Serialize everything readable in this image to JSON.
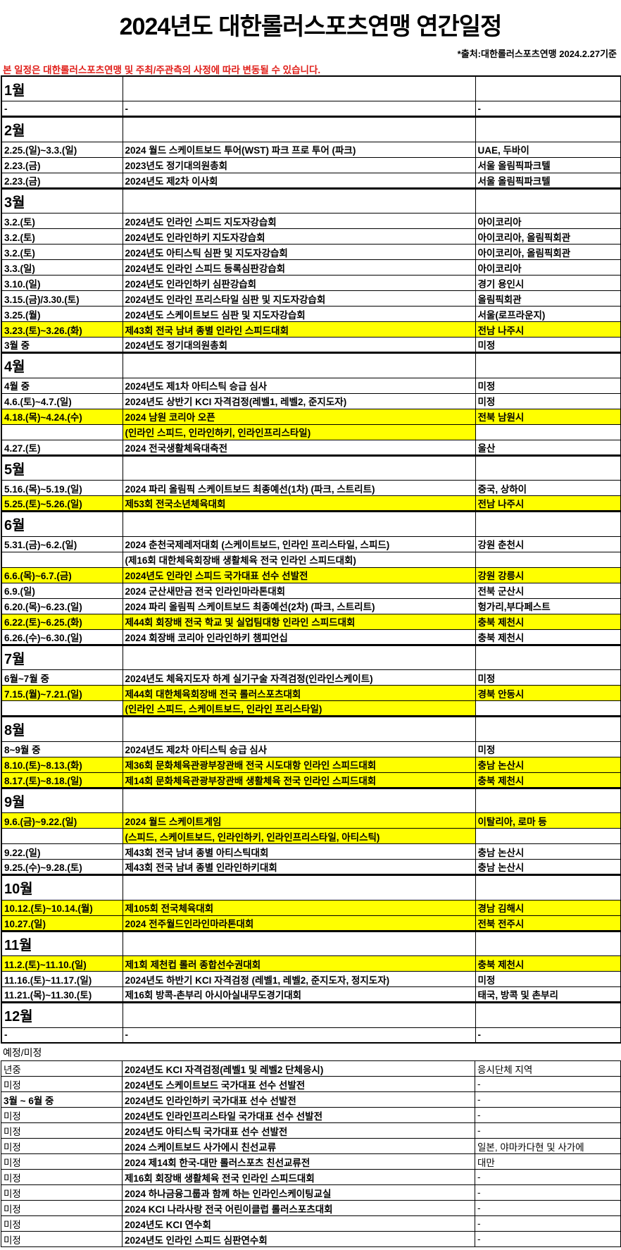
{
  "header": {
    "title": "2024년도 대한롤러스포츠연맹 연간일정",
    "source": "*출처:대한롤러스포츠연맹 2024.2.27기준",
    "notice": "본 일정은 대한롤러스포츠연맹 및 주최/주관측의 사정에 따라 변동될 수 있습니다."
  },
  "colors": {
    "highlight": "#ffff00",
    "notice": "#e0201b"
  },
  "months": [
    {
      "label": "1월",
      "rows": [
        {
          "date": "-",
          "event": "-",
          "location": "-"
        }
      ]
    },
    {
      "label": "2월",
      "rows": [
        {
          "date": "2.25.(일)~3.3.(일)",
          "event": "2024 월드 스케이트보드 투어(WST) 파크 프로 투어 (파크)",
          "location": "UAE, 두바이"
        },
        {
          "date": "2.23.(금)",
          "event": "2023년도 정기대의원총회",
          "location": "서울 올림픽파크텔"
        },
        {
          "date": "2.23.(금)",
          "event": "2024년도 제2차 이사회",
          "location": "서울 올림픽파크텔"
        }
      ]
    },
    {
      "label": "3월",
      "rows": [
        {
          "date": "3.2.(토)",
          "event": "2024년도 인라인 스피드 지도자강습회",
          "location": "아이코리아"
        },
        {
          "date": "3.2.(토)",
          "event": "2024년도 인라인하키 지도자강습회",
          "location": "아이코리아, 올림픽회관"
        },
        {
          "date": "3.2.(토)",
          "event": "2024년도 아티스틱 심판 및 지도자강습회",
          "location": "아이코리아, 올림픽회관"
        },
        {
          "date": "3.3.(일)",
          "event": "2024년도 인라인 스피드 등록심판강습회",
          "location": "아이코리아"
        },
        {
          "date": "3.10.(일)",
          "event": "2024년도 인라인하키 심판강습회",
          "location": "경기 용인시"
        },
        {
          "date": "3.15.(금)/3.30.(토)",
          "event": "2024년도 인라인 프리스타일 심판 및 지도자강습회",
          "location": "올림픽회관"
        },
        {
          "date": "3.25.(월)",
          "event": "2024년도 스케이트보드 심판 및 지도자강습회",
          "location": "서울(로프라운지)"
        },
        {
          "date": "3.23.(토)~3.26.(화)",
          "event": "제43회 전국 남녀 종별 인라인 스피드대회",
          "location": "전남 나주시",
          "highlight": "row"
        },
        {
          "date": "3월 중",
          "event": "2024년도 정기대의원총회",
          "location": "미정"
        }
      ]
    },
    {
      "label": "4월",
      "rows": [
        {
          "date": "4월 중",
          "event": "2024년도 제1차 아티스틱 승급 심사",
          "location": "미정"
        },
        {
          "date": "4.6.(토)~4.7.(일)",
          "event": "2024년도 상반기 KCI 자격검정(레벨1, 레벨2, 준지도자)",
          "location": "미정"
        },
        {
          "date": "4.18.(목)~4.24.(수)",
          "event": "2024 남원 코리아 오픈",
          "location": "전북 남원시",
          "highlight": "row"
        },
        {
          "date": "",
          "event": "(인라인 스피드, 인라인하키, 인라인프리스타일)",
          "location": "",
          "highlight": "event"
        },
        {
          "date": "4.27.(토)",
          "event": "2024 전국생활체육대축전",
          "location": "울산"
        }
      ]
    },
    {
      "label": "5월",
      "rows": [
        {
          "date": "5.16.(목)~5.19.(일)",
          "event": "2024 파리 올림픽 스케이트보드 최종예선(1차) (파크, 스트리트)",
          "location": "중국, 상하이"
        },
        {
          "date": "5.25.(토)~5.26.(일)",
          "event": "제53회 전국소년체육대회",
          "location": "전남 나주시",
          "highlight": "row"
        }
      ]
    },
    {
      "label": "6월",
      "rows": [
        {
          "date": "5.31.(금)~6.2.(일)",
          "event": "2024 춘천국제레저대회 (스케이트보드, 인라인 프리스타일, 스피드)",
          "location": "강원 춘천시"
        },
        {
          "date": "",
          "event": "(제16회 대한체육회장배 생활체육 전국 인라인 스피드대회)",
          "location": ""
        },
        {
          "date": "6.6.(목)~6.7.(금)",
          "event": "2024년도 인라인 스피드 국가대표 선수 선발전",
          "location": "강원 강릉시",
          "highlight": "row"
        },
        {
          "date": "6.9.(일)",
          "event": "2024 군산새만금 전국 인라인마라톤대회",
          "location": "전북 군산시"
        },
        {
          "date": "6.20.(목)~6.23.(일)",
          "event": "2024 파리 올림픽 스케이트보드 최종예선(2차) (파크, 스트리트)",
          "location": "헝가리,부다페스트"
        },
        {
          "date": "6.22.(토)~6.25.(화)",
          "event": "제44회 회장배 전국 학교 및 실업팀대항 인라인 스피드대회",
          "location": "충북 제천시",
          "highlight": "row"
        },
        {
          "date": "6.26.(수)~6.30.(일)",
          "event": "2024 회장배 코리아 인라인하키 챔피언십",
          "location": "충북 제천시"
        }
      ]
    },
    {
      "label": "7월",
      "rows": [
        {
          "date": "6월~7월 중",
          "event": "2024년도 체육지도자 하계 실기구술 자격검정(인라인스케이트)",
          "location": "미정"
        },
        {
          "date": "7.15.(월)~7.21.(일)",
          "event": "제44회 대한체육회장배 전국 롤러스포츠대회",
          "location": "경북 안동시",
          "highlight": "row"
        },
        {
          "date": "",
          "event": "(인라인 스피드, 스케이트보드, 인라인 프리스타일)",
          "location": "",
          "highlight": "event"
        }
      ]
    },
    {
      "label": "8월",
      "rows": [
        {
          "date": "8~9월 중",
          "event": "2024년도 제2차 아티스틱 승급 심사",
          "location": "미정"
        },
        {
          "date": "8.10.(토)~8.13.(화)",
          "event": "제36회 문화체육관광부장관배 전국 시도대항 인라인 스피드대회",
          "location": "충남 논산시",
          "highlight": "row"
        },
        {
          "date": "8.17.(토)~8.18.(일)",
          "event": "제14회 문화체육관광부장관배 생활체육 전국 인라인 스피드대회",
          "location": "충북 제천시",
          "highlight": "row"
        }
      ]
    },
    {
      "label": "9월",
      "rows": [
        {
          "date": "9.6.(금)~9.22.(일)",
          "event": "2024 월드 스케이트게임",
          "location": "이탈리아, 로마 등",
          "highlight": "row"
        },
        {
          "date": "",
          "event": "(스피드, 스케이트보드, 인라인하키, 인라인프리스타일, 아티스틱)",
          "location": "",
          "highlight": "event"
        },
        {
          "date": "9.22.(일)",
          "event": "제43회 전국 남녀 종별 아티스틱대회",
          "location": "충남 논산시"
        },
        {
          "date": "9.25.(수)~9.28.(토)",
          "event": "제43회 전국 남녀 종별 인라인하키대회",
          "location": "충남 논산시"
        }
      ]
    },
    {
      "label": "10월",
      "rows": [
        {
          "date": "10.12.(토)~10.14.(월)",
          "event": "제105회 전국체육대회",
          "location": "경남 김해시",
          "highlight": "row"
        },
        {
          "date": "10.27.(일)",
          "event": "2024 전주월드인라인마라톤대회",
          "location": "전북 전주시",
          "highlight": "row"
        }
      ]
    },
    {
      "label": "11월",
      "rows": [
        {
          "date": "11.2.(토)~11.10.(일)",
          "event": "제1회 제천컵 롤러 종합선수권대회",
          "location": "충북 제천시",
          "highlight": "row"
        },
        {
          "date": "11.16.(토)~11.17.(일)",
          "event": "2024년도 하반기 KCI 자격검정 (레벨1, 레벨2, 준지도자, 정지도자)",
          "location": "미정"
        },
        {
          "date": "11.21.(목)~11.30.(토)",
          "event": "제16회 방콕-촌부리 아시아실내무도경기대회",
          "location": "태국, 방콕 및 촌부리"
        }
      ]
    },
    {
      "label": "12월",
      "rows": [
        {
          "date": "-",
          "event": "-",
          "location": "-"
        }
      ]
    }
  ],
  "tbd": {
    "label": "예정/미정",
    "rows": [
      {
        "date": "년중",
        "event": "2024년도 KCI 자격검정(레벨1 및 레벨2 단체응시)",
        "location": "응시단체 지역"
      },
      {
        "date": "미정",
        "event": "2024년도 스케이트보드 국가대표 선수 선발전",
        "location": "-"
      },
      {
        "date": "3월 ~ 6월 중",
        "event": "2024년도 인라인하키 국가대표 선수 선발전",
        "location": "-"
      },
      {
        "date": "미정",
        "event": "2024년도 인라인프리스타일 국가대표 선수 선발전",
        "location": "-"
      },
      {
        "date": "미정",
        "event": "2024년도 아티스틱 국가대표 선수 선발전",
        "location": "-"
      },
      {
        "date": "미정",
        "event": "2024 스케이트보드 사가에시 친선교류",
        "location": "일본, 야마카다현 및 사가에"
      },
      {
        "date": "미정",
        "event": "2024 제14회 한국-대만 롤러스포츠 친선교류전",
        "location": "대만"
      },
      {
        "date": "미정",
        "event": "제16회 회장배 생활체육 전국 인라인 스피드대회",
        "location": "-"
      },
      {
        "date": "미정",
        "event": "2024 하나금융그룹과 함께 하는 인라인스케이팅교실",
        "location": "-"
      },
      {
        "date": "미정",
        "event": "2024 KCI 나라사랑 전국 어린이클럽 롤러스포츠대회",
        "location": "-"
      },
      {
        "date": "미정",
        "event": "2024년도 KCI 연수회",
        "location": "-"
      },
      {
        "date": "미정",
        "event": "2024년도 인라인 스피드 심판연수회",
        "location": "-"
      }
    ]
  }
}
